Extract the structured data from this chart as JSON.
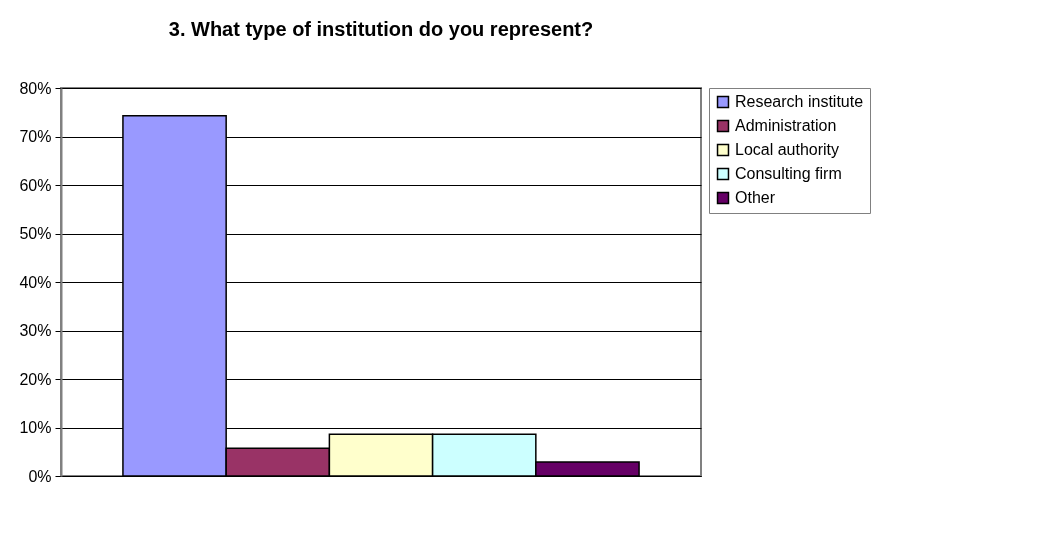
{
  "chart_data": {
    "type": "bar",
    "title": "3. What type of institution do you represent?",
    "categories": [
      null
    ],
    "series": [
      {
        "name": "Research institute",
        "color": "#9999ff",
        "values": [
          74.3
        ]
      },
      {
        "name": "Administration",
        "color": "#993366",
        "values": [
          5.7
        ]
      },
      {
        "name": "Local authority",
        "color": "#ffffcc",
        "values": [
          8.6
        ]
      },
      {
        "name": "Consulting firm",
        "color": "#ccffff",
        "values": [
          8.6
        ]
      },
      {
        "name": "Other",
        "color": "#660066",
        "values": [
          2.9
        ]
      }
    ],
    "ylim": [
      0,
      80
    ],
    "yticks": [
      {
        "value": 0,
        "label": "0%"
      },
      {
        "value": 10,
        "label": "10%"
      },
      {
        "value": 20,
        "label": "20%"
      },
      {
        "value": 30,
        "label": "30%"
      },
      {
        "value": 40,
        "label": "40%"
      },
      {
        "value": 50,
        "label": "50%"
      },
      {
        "value": 60,
        "label": "60%"
      },
      {
        "value": 70,
        "label": "70%"
      },
      {
        "value": 80,
        "label": "80%"
      }
    ],
    "grid": "y",
    "legend": "right",
    "tick_labels": "y"
  }
}
